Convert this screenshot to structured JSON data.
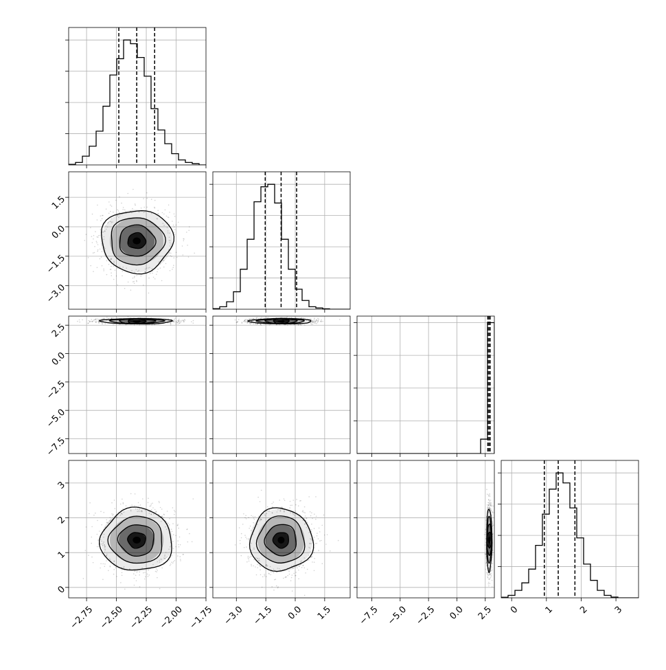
{
  "chart_data": {
    "type": "corner",
    "title": "",
    "quantiles": [
      0.16,
      0.5,
      0.84
    ],
    "variables": [
      {
        "name": "",
        "range": [
          -2.9,
          -1.75
        ],
        "ticks": [
          {
            "value": -2.75,
            "label": "−2.75"
          },
          {
            "value": -2.5,
            "label": "−2.50"
          },
          {
            "value": -2.25,
            "label": "−2.25"
          },
          {
            "value": -2.0,
            "label": "−2.00"
          },
          {
            "value": -1.75,
            "label": "−1.75"
          }
        ],
        "hist": {
          "bin_start": -2.9,
          "bin_width": 0.0575,
          "counts": [
            0.5,
            2,
            7,
            15,
            27,
            47,
            72,
            85,
            100,
            97,
            86,
            71,
            45,
            28,
            17,
            9,
            4,
            2,
            1,
            0
          ],
          "ymax": 110
        },
        "quantile_values": [
          -2.48,
          -2.33,
          -2.18
        ]
      },
      {
        "name": "",
        "range": [
          -4.2,
          2.8
        ],
        "ticks": [
          {
            "value": -3.0,
            "label": "−3.0"
          },
          {
            "value": -1.5,
            "label": "−1.5"
          },
          {
            "value": 0.0,
            "label": "0.0"
          },
          {
            "value": 1.5,
            "label": "1.5"
          }
        ],
        "hist": {
          "bin_start": -4.2,
          "bin_width": 0.35,
          "counts": [
            0.5,
            2,
            6,
            14,
            32,
            56,
            86,
            98,
            100,
            85,
            56,
            32,
            16,
            7,
            2,
            1,
            0.3,
            0,
            0,
            0
          ],
          "ymax": 110
        },
        "quantile_values": [
          -1.53,
          -0.72,
          0.07
        ]
      },
      {
        "name": "",
        "range": [
          -8.8,
          3.3
        ],
        "ticks": [
          {
            "value": -7.5,
            "label": "−7.5"
          },
          {
            "value": -5.0,
            "label": "−5.0"
          },
          {
            "value": -2.5,
            "label": "−2.5"
          },
          {
            "value": 0.0,
            "label": "0.0"
          },
          {
            "value": 2.5,
            "label": "2.5"
          }
        ],
        "hist": {
          "bin_start": -8.8,
          "bin_width": 0.605,
          "counts": [
            0,
            0,
            0,
            0,
            0,
            0,
            0,
            0,
            0,
            0,
            0,
            0,
            0,
            0,
            0,
            0,
            0,
            0,
            11,
            100
          ],
          "ymax": 105
        },
        "quantile_values": [
          2.72,
          2.82,
          2.93
        ]
      },
      {
        "name": "",
        "range": [
          -0.3,
          3.65
        ],
        "ticks": [
          {
            "value": 0,
            "label": "0"
          },
          {
            "value": 1,
            "label": "1"
          },
          {
            "value": 2,
            "label": "2"
          },
          {
            "value": 3,
            "label": "3"
          }
        ],
        "hist": {
          "bin_start": -0.3,
          "bin_width": 0.1975,
          "counts": [
            0.5,
            2,
            6,
            12,
            23,
            42,
            67,
            87,
            100,
            92,
            72,
            48,
            27,
            14,
            6,
            2,
            0.6,
            0,
            0,
            0
          ],
          "ymax": 110
        },
        "quantile_values": [
          0.94,
          1.34,
          1.82
        ]
      }
    ],
    "two_d": [
      {
        "x": 0,
        "y": 1,
        "center": [
          -2.33,
          -0.72
        ],
        "sigma": [
          0.15,
          0.8
        ]
      },
      {
        "x": 0,
        "y": 2,
        "center": [
          -2.33,
          2.85
        ],
        "sigma": [
          0.15,
          0.12
        ]
      },
      {
        "x": 1,
        "y": 2,
        "center": [
          -0.72,
          2.85
        ],
        "sigma": [
          0.8,
          0.12
        ]
      },
      {
        "x": 0,
        "y": 3,
        "center": [
          -2.33,
          1.36
        ],
        "sigma": [
          0.15,
          0.45
        ]
      },
      {
        "x": 1,
        "y": 3,
        "center": [
          -0.72,
          1.36
        ],
        "sigma": [
          0.8,
          0.45
        ]
      },
      {
        "x": 2,
        "y": 3,
        "center": [
          2.85,
          1.36
        ],
        "sigma": [
          0.12,
          0.45
        ]
      }
    ],
    "contour_levels_sigma": [
      0.5,
      1.0,
      1.5,
      2.0
    ],
    "grid": true,
    "colors": {
      "hist": "#000000",
      "points": "#000000",
      "grid": "#b0b0b0",
      "density": "#000000"
    }
  }
}
